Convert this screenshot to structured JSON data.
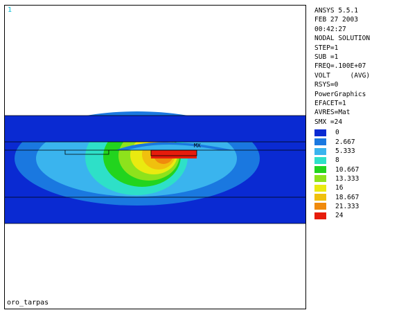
{
  "viewport": {
    "window_number": "1",
    "model_name": "oro_tarpas",
    "max_marker": "MX"
  },
  "info_panel": {
    "lines": [
      "ANSYS 5.5.1",
      "FEB 27 2003",
      "00:42:27",
      "NODAL SOLUTION",
      "STEP=1",
      "SUB =1",
      "FREQ=.100E+07",
      "VOLT     (AVG)",
      "RSYS=0",
      "PowerGraphics",
      "EFACET=1",
      "AVRES=Mat",
      "SMX =24"
    ]
  },
  "legend": [
    {
      "label": "0",
      "color": "#0a2ad2"
    },
    {
      "label": "2.667",
      "color": "#1a78e0"
    },
    {
      "label": "5.333",
      "color": "#3ab4ee"
    },
    {
      "label": "8",
      "color": "#2ee0c8"
    },
    {
      "label": "10.667",
      "color": "#22d41e"
    },
    {
      "label": "13.333",
      "color": "#8ee21c"
    },
    {
      "label": "16",
      "color": "#eaea10"
    },
    {
      "label": "18.667",
      "color": "#f0c00e"
    },
    {
      "label": "21.333",
      "color": "#f08a0c"
    },
    {
      "label": "24",
      "color": "#e61c0c"
    }
  ]
}
